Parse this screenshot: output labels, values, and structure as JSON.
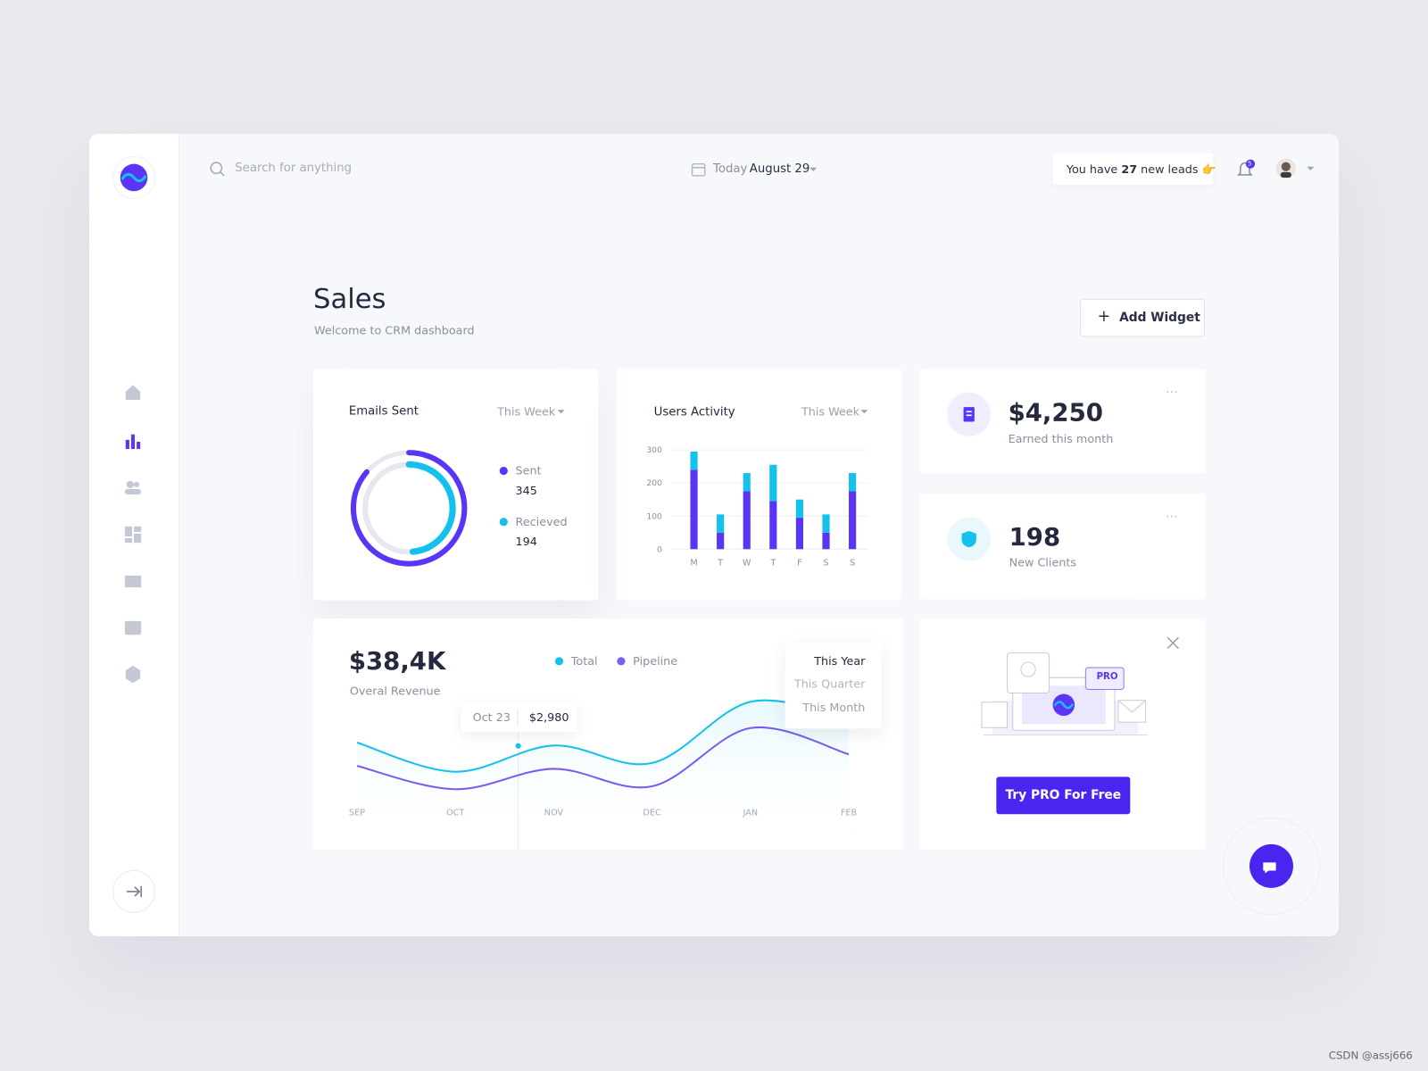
{
  "header": {
    "search_placeholder": "Search for anything",
    "date_label": "Today",
    "date": "August 29",
    "leads": {
      "prefix": "You have",
      "count": "27",
      "suffix": "new leads 👉"
    },
    "notifications": "5"
  },
  "page": {
    "title": "Sales",
    "subtitle": "Welcome to CRM dashboard",
    "add_widget": "Add Widget"
  },
  "emails_sent": {
    "title": "Emails Sent",
    "period": "This Week",
    "chart_data": {
      "type": "donut",
      "rlim": [
        0,
        400
      ],
      "series": [
        {
          "name": "Sent",
          "color": "#5b35f5",
          "values": [
            345
          ]
        },
        {
          "name": "Recieved",
          "color": "#14c1ec",
          "values": [
            194
          ]
        }
      ]
    }
  },
  "users_activity": {
    "title": "Users Activity",
    "period": "This Week",
    "chart_data": {
      "type": "bar",
      "stacked": true,
      "categories": [
        "M",
        "T",
        "W",
        "T",
        "F",
        "S",
        "S"
      ],
      "series": [
        {
          "color": "#5b35f5",
          "values": [
            240,
            50,
            175,
            145,
            95,
            50,
            175
          ]
        },
        {
          "color": "#14c1ec",
          "values": [
            55,
            55,
            55,
            110,
            55,
            55,
            55
          ]
        }
      ],
      "ylim": [
        0,
        300
      ],
      "yticks": [
        0,
        100,
        200,
        300
      ],
      "grid": true
    }
  },
  "earned": {
    "value": "$4,250",
    "label": "Earned this month"
  },
  "clients": {
    "value": 198,
    "label": "New Clients"
  },
  "revenue": {
    "value": "$38,4K",
    "label": "Overal Revenue",
    "chart_data": {
      "type": "line",
      "categories": [
        "SEP",
        "OCT",
        "NOV",
        "DEC",
        "JAN",
        "FEB"
      ],
      "series": [
        {
          "name": "Total",
          "color": "#14c1ec",
          "values": [
            2900,
            2400,
            2850,
            2550,
            3600,
            3300
          ]
        },
        {
          "name": "Pipeline",
          "color": "#7b5cf0",
          "values": [
            2500,
            2100,
            2450,
            2150,
            3150,
            2700
          ]
        }
      ],
      "ylim": [
        1500,
        4000
      ]
    },
    "tooltip": {
      "date": "Oct 23",
      "value": "$2,980"
    },
    "periods": [
      "This Year",
      "This Quarter",
      "This Month"
    ]
  },
  "promo": {
    "badge": "PRO",
    "button": "Try PRO For Free"
  },
  "watermark": "CSDN @assj666"
}
